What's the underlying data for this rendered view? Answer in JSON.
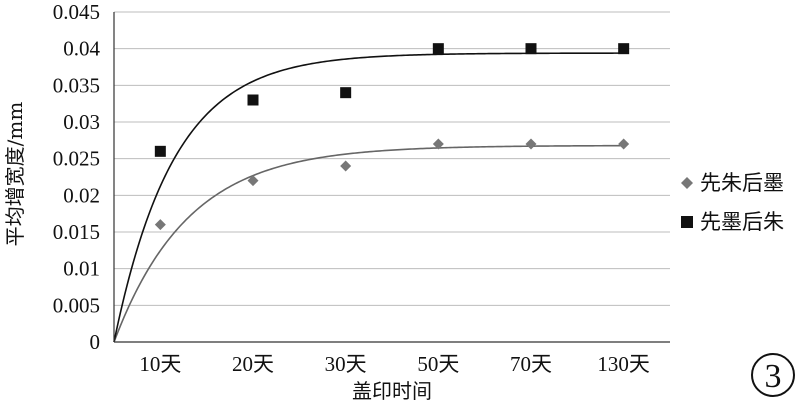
{
  "chart_data": {
    "type": "scatter",
    "categories": [
      "10天",
      "20天",
      "30天",
      "50天",
      "70天",
      "130天"
    ],
    "series": [
      {
        "name": "先朱后墨",
        "marker": "diamond",
        "color": "#777777",
        "values": [
          0.016,
          0.022,
          0.024,
          0.027,
          0.027,
          0.027
        ]
      },
      {
        "name": "先墨后朱",
        "marker": "square",
        "color": "#111111",
        "values": [
          0.026,
          0.033,
          0.034,
          0.04,
          0.04,
          0.04
        ]
      }
    ],
    "trendlines": [
      {
        "series": "先朱后墨",
        "asymptote": 0.0268,
        "rate": 1.25,
        "color": "#666666"
      },
      {
        "series": "先墨后朱",
        "asymptote": 0.0394,
        "rate": 1.55,
        "color": "#111111"
      }
    ],
    "yticks": [
      "0",
      "0.005",
      "0.01",
      "0.015",
      "0.02",
      "0.025",
      "0.03",
      "0.035",
      "0.04",
      "0.045"
    ],
    "ylim": [
      0,
      0.045
    ],
    "xlabel": "盖印时间",
    "ylabel": "平均增宽度/mm",
    "grid": true,
    "legend": "right",
    "badge": "3"
  }
}
